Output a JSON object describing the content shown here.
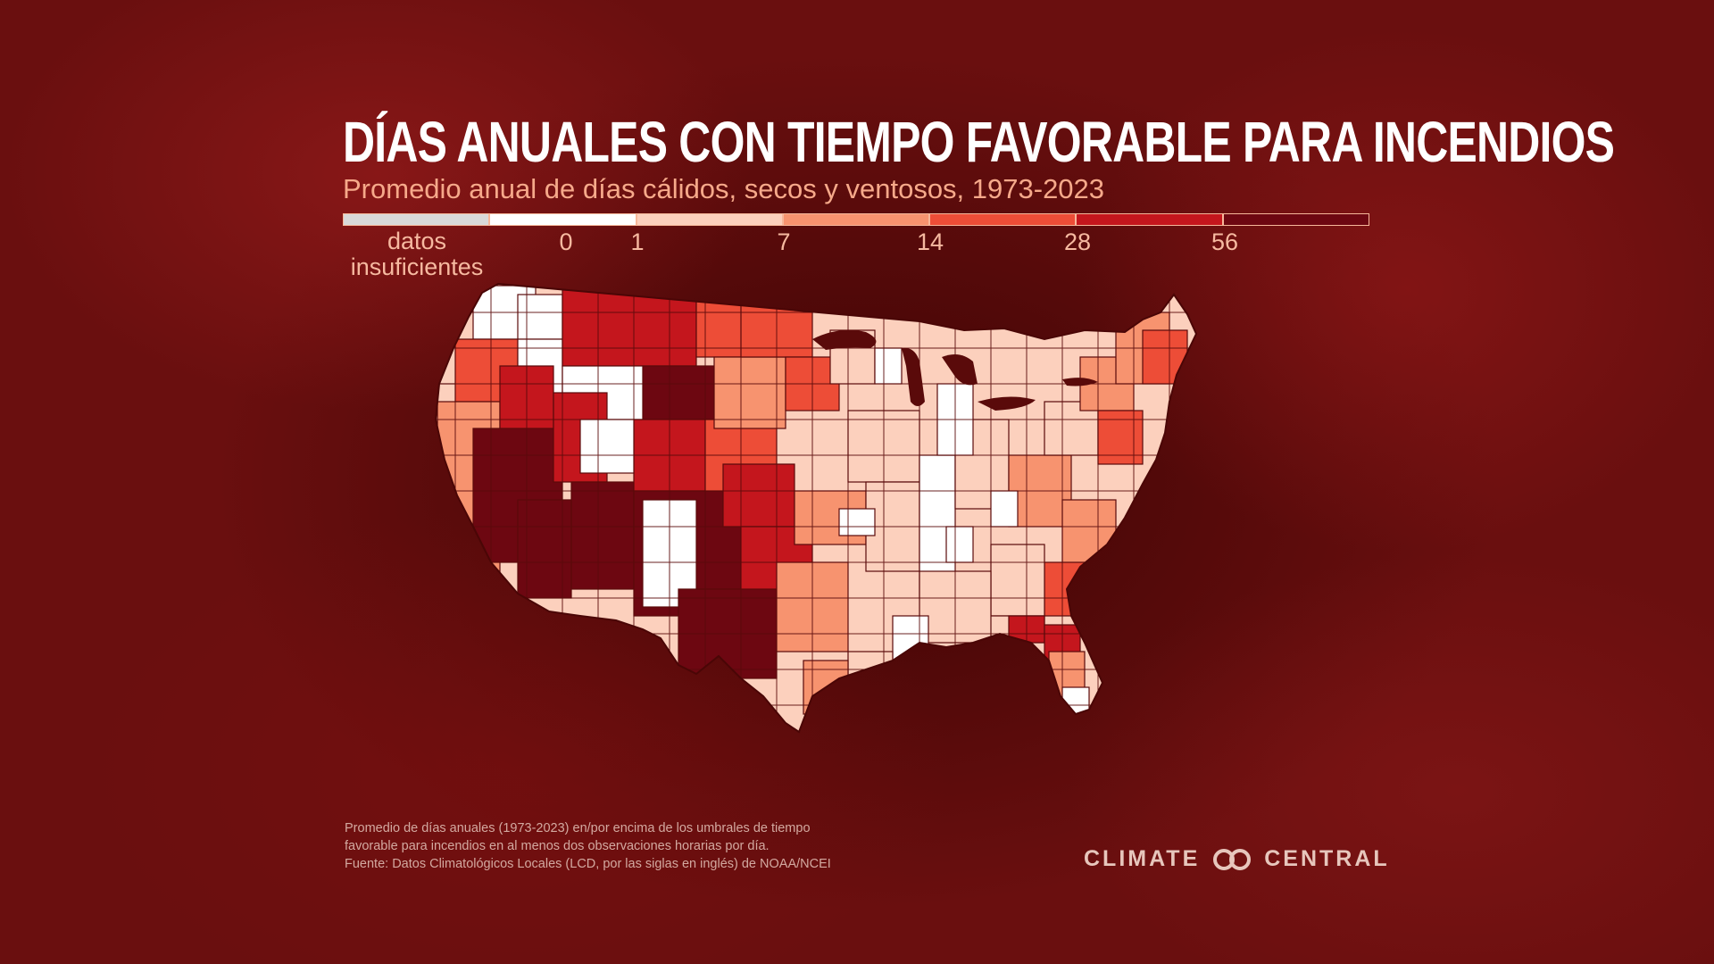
{
  "title": "DÍAS ANUALES CON TIEMPO FAVORABLE PARA INCENDIOS",
  "subtitle": "Promedio anual de días cálidos, secos y ventosos, 1973-2023",
  "legend": {
    "insufficient_label": "datos insuficientes",
    "bins": [
      {
        "from": null,
        "to": null,
        "color": "#d9d9d9"
      },
      {
        "from": 0,
        "to": 1,
        "color": "#ffffff"
      },
      {
        "from": 1,
        "to": 7,
        "color": "#fcd0bd"
      },
      {
        "from": 7,
        "to": 14,
        "color": "#f7936f"
      },
      {
        "from": 14,
        "to": 28,
        "color": "#ed4d37"
      },
      {
        "from": 28,
        "to": 56,
        "color": "#c4161d"
      },
      {
        "from": 56,
        "to": null,
        "color": "#6d0711"
      }
    ],
    "ticks": [
      "0",
      "1",
      "7",
      "14",
      "28",
      "56"
    ]
  },
  "colors": {
    "background": "#5a0a0a",
    "title": "#ffffff",
    "subtitle": "#f6a98a",
    "county_border": "#5a0a0a"
  },
  "footnote": {
    "line1": "Promedio de días anuales (1973-2023) en/por encima de los umbrales de tiempo",
    "line2": "favorable para incendios en al menos dos observaciones horarias por día.",
    "line3": "Fuente: Datos Climatológicos Locales (LCD, por las siglas en inglés) de NOAA/NCEI"
  },
  "brand": {
    "left": "CLIMATE",
    "right": "CENTRAL",
    "logo_icon": "infinity-circles-icon"
  }
}
